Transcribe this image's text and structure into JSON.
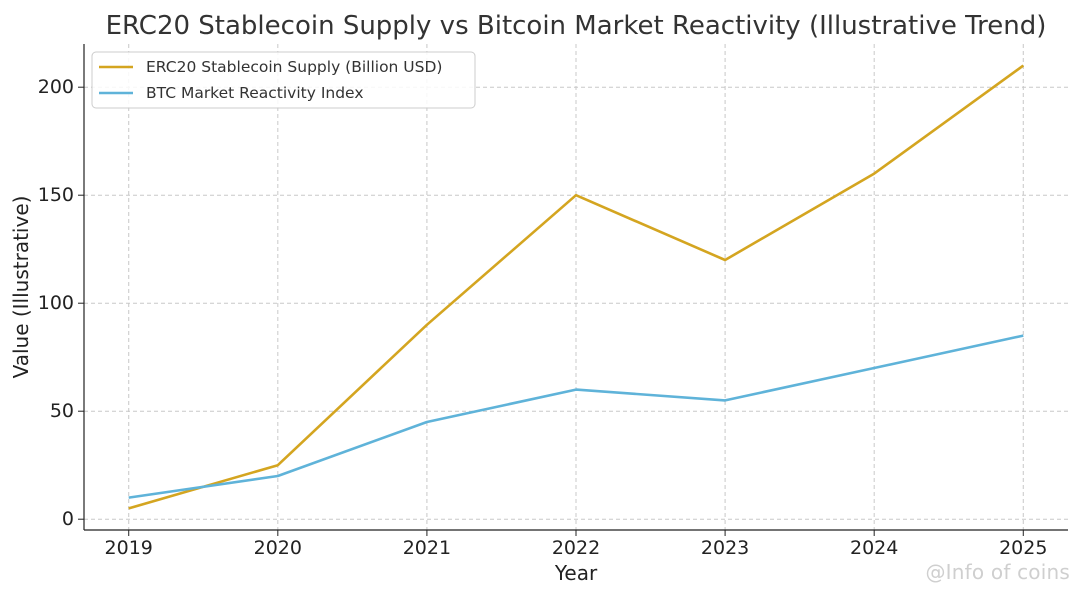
{
  "chart_data": {
    "type": "line",
    "title": "ERC20 Stablecoin Supply vs Bitcoin Market Reactivity (Illustrative Trend)",
    "xlabel": "Year",
    "ylabel": "Value (Illustrative)",
    "x": [
      2019,
      2020,
      2021,
      2022,
      2023,
      2024,
      2025
    ],
    "x_tick_labels": [
      "2019",
      "2020",
      "2021",
      "2022",
      "2023",
      "2024",
      "2025"
    ],
    "xlim": [
      2018.7,
      2025.3
    ],
    "ylim": [
      -5,
      220
    ],
    "y_ticks": [
      0,
      50,
      100,
      150,
      200
    ],
    "grid": true,
    "legend_position": "top-left",
    "series": [
      {
        "name": "ERC20 Stablecoin Supply (Billion USD)",
        "color": "#d4a520",
        "values": [
          5,
          25,
          90,
          150,
          120,
          160,
          210
        ]
      },
      {
        "name": "BTC Market Reactivity Index",
        "color": "#5fb3d9",
        "values": [
          10,
          20,
          45,
          60,
          55,
          70,
          85
        ]
      }
    ]
  },
  "watermark": "@Info of coins"
}
